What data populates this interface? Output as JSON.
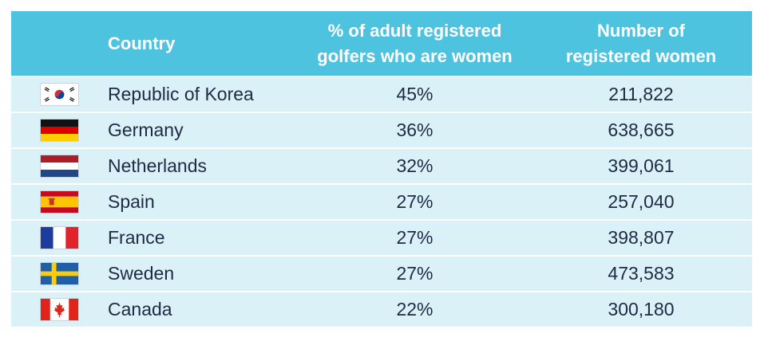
{
  "chart_data": {
    "type": "table",
    "columns": [
      "Country",
      "% of adult registered golfers who are women",
      "Number of registered women"
    ],
    "header_lines": {
      "country": "Country",
      "pct": [
        "% of adult registered",
        "golfers who are women"
      ],
      "num": [
        "Number of",
        "registered women"
      ]
    },
    "rows": [
      {
        "flag": "south-korea-flag",
        "country": "Republic of Korea",
        "pct": "45%",
        "num": "211,822"
      },
      {
        "flag": "germany-flag",
        "country": "Germany",
        "pct": "36%",
        "num": "638,665"
      },
      {
        "flag": "netherlands-flag",
        "country": "Netherlands",
        "pct": "32%",
        "num": "399,061"
      },
      {
        "flag": "spain-flag",
        "country": "Spain",
        "pct": "27%",
        "num": "257,040"
      },
      {
        "flag": "france-flag",
        "country": "France",
        "pct": "27%",
        "num": "398,807"
      },
      {
        "flag": "sweden-flag",
        "country": "Sweden",
        "pct": "27%",
        "num": "473,583"
      },
      {
        "flag": "canada-flag",
        "country": "Canada",
        "pct": "22%",
        "num": "300,180"
      }
    ],
    "colors": {
      "header_bg": "#4ec3e0",
      "row_bg": "#daf1f8",
      "text": "#1f2a44"
    }
  }
}
